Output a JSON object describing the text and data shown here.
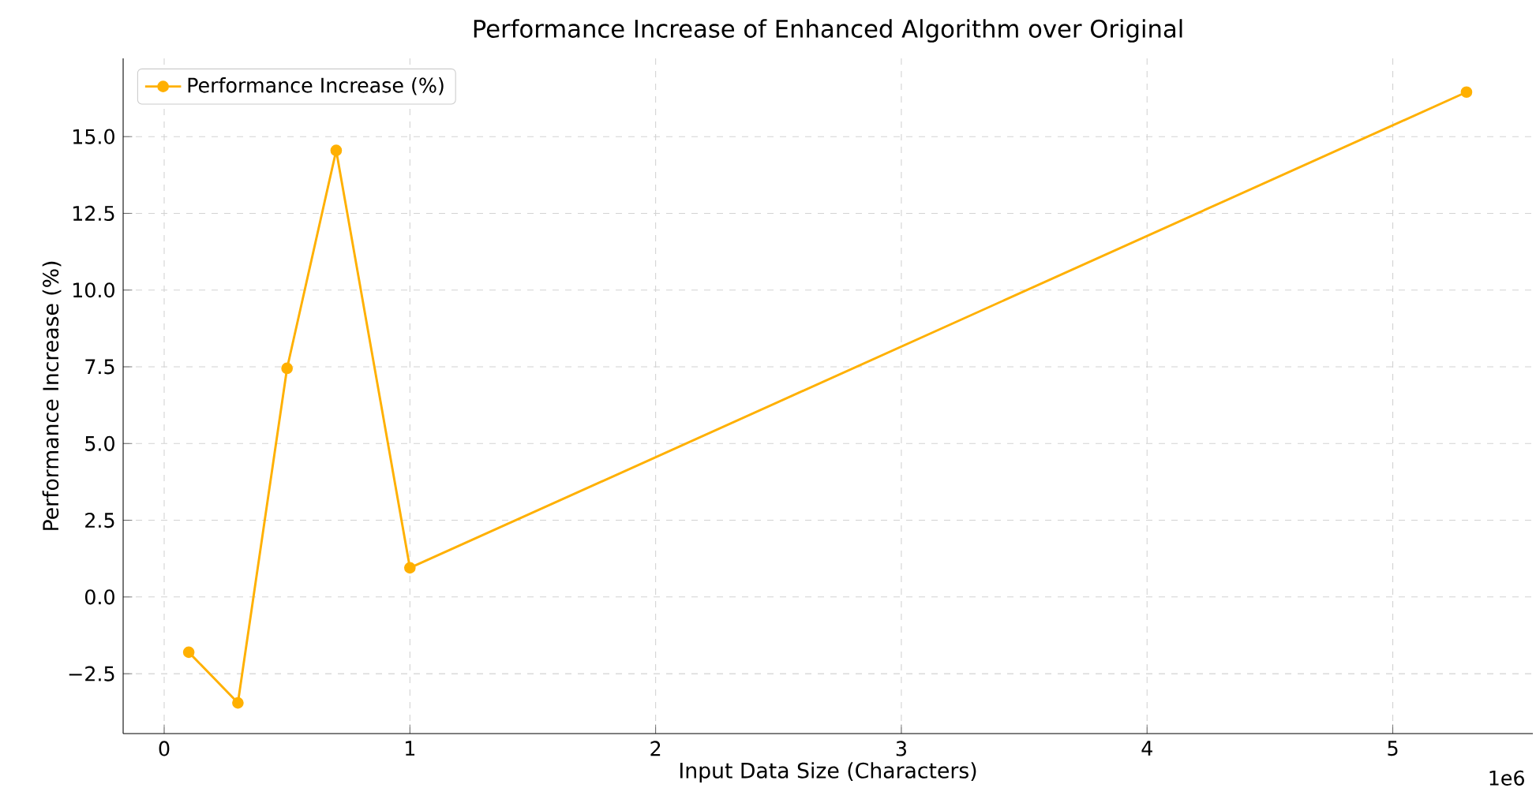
{
  "chart_data": {
    "type": "line",
    "title": "Performance Increase of Enhanced Algorithm over Original",
    "xlabel": "Input Data Size (Characters)",
    "ylabel": "Performance Increase (%)",
    "annotations": [
      "1e6"
    ],
    "x": [
      0.1,
      0.3,
      0.5,
      0.7,
      1.0,
      5.3
    ],
    "series": [
      {
        "name": "Performance Increase (%)",
        "color": "#ffb000",
        "values": [
          -1.8,
          -3.45,
          7.45,
          14.55,
          0.95,
          16.45
        ]
      }
    ],
    "xlim": [
      -0.167,
      5.57
    ],
    "ylim": [
      -4.45,
      17.55
    ],
    "xticks": [
      0,
      1,
      2,
      3,
      4,
      5
    ],
    "yticks": [
      {
        "value": -2.5,
        "label": "−2.5"
      },
      {
        "value": 0,
        "label": "0.0"
      },
      {
        "value": 2.5,
        "label": "2.5"
      },
      {
        "value": 5,
        "label": "5.0"
      },
      {
        "value": 7.5,
        "label": "7.5"
      },
      {
        "value": 10,
        "label": "10.0"
      },
      {
        "value": 12.5,
        "label": "12.5"
      },
      {
        "value": 15,
        "label": "15.0"
      }
    ],
    "grid": true,
    "legend": "top left",
    "marker": "circle",
    "line_style": "solid"
  }
}
